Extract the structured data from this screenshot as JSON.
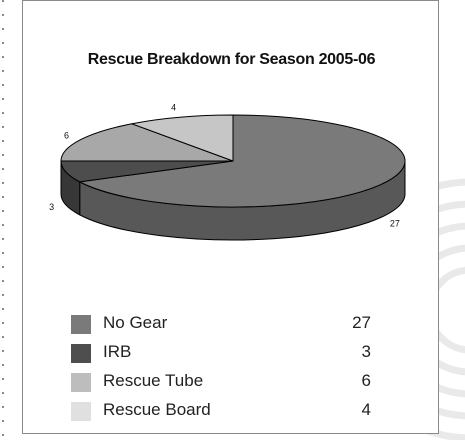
{
  "chart_data": {
    "type": "pie",
    "title": "Rescue Breakdown for Season 2005-06",
    "labels": [
      "No Gear",
      "IRB",
      "Rescue Tube",
      "Rescue Board"
    ],
    "values": [
      27,
      3,
      6,
      4
    ],
    "colors": [
      "#7a7a7a",
      "#4d4d4d",
      "#a8a8a8",
      "#c6c6c6"
    ],
    "legend_colors": [
      "#7a7a7a",
      "#4e4e4e",
      "#bdbdbd",
      "#e0e0e0"
    ],
    "start_angle_deg": 270,
    "legend_position": "bottom",
    "three_d": true
  }
}
